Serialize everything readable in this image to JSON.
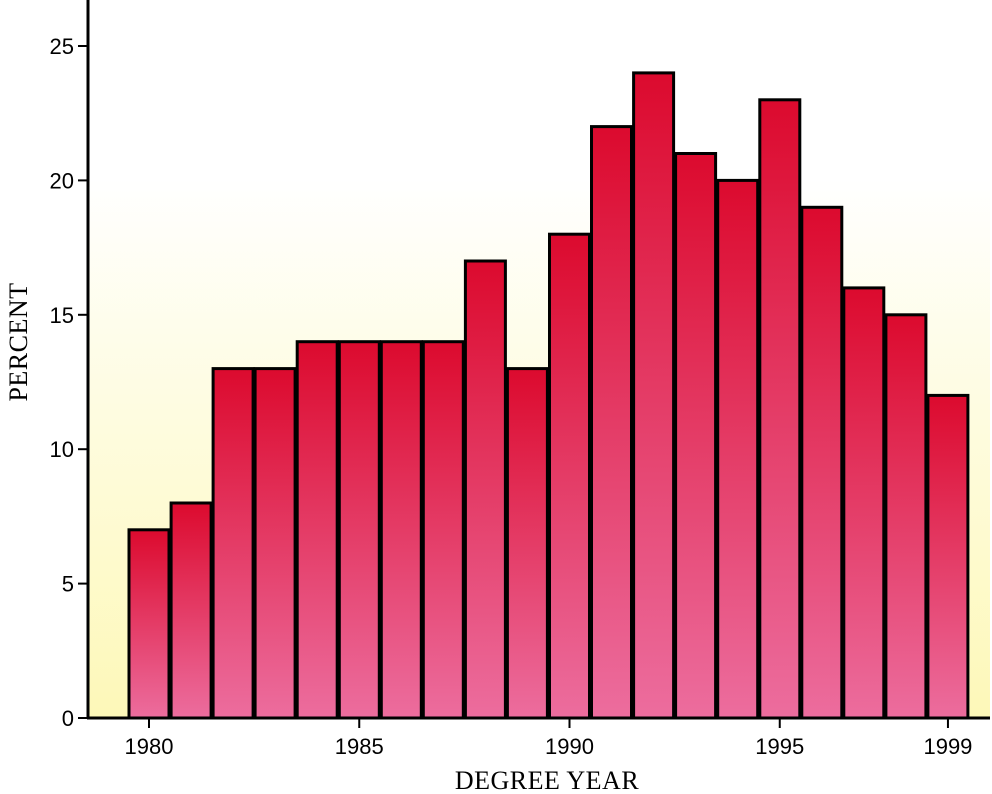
{
  "chart_data": {
    "type": "bar",
    "title": "",
    "xlabel": "DEGREE YEAR",
    "ylabel": "PERCENT",
    "categories": [
      "1980",
      "1981",
      "1982",
      "1983",
      "1984",
      "1985",
      "1986",
      "1987",
      "1988",
      "1989",
      "1990",
      "1991",
      "1992",
      "1993",
      "1994",
      "1995",
      "1996",
      "1997",
      "1998",
      "1999"
    ],
    "values": [
      7,
      8,
      13,
      13,
      14,
      14,
      14,
      14,
      17,
      13,
      18,
      22,
      24,
      21,
      20,
      23,
      19,
      16,
      15,
      12
    ],
    "xticks": [
      "1980",
      "1985",
      "1990",
      "1995",
      "1999"
    ],
    "yticks": [
      0,
      5,
      10,
      15,
      20,
      25
    ],
    "ylim": [
      0,
      26.5
    ],
    "grid": false,
    "legend": "none",
    "colors": {
      "bar_top": "#dc0a2e",
      "bar_bottom": "#ec6d9e",
      "bar_outline": "#000000",
      "background_top": "#ffffff",
      "background_bottom": "#fdf8b8"
    }
  }
}
